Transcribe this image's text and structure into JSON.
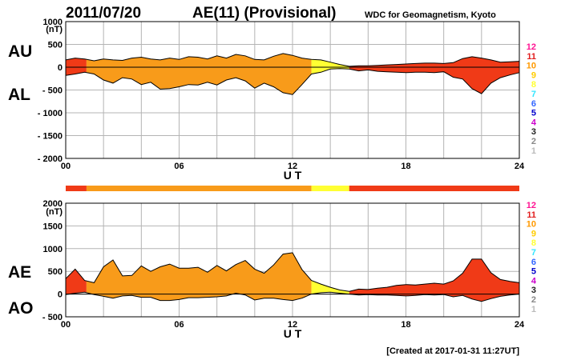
{
  "header": {
    "date": "2011/07/20",
    "title": "AE(11) (Provisional)",
    "source": "WDC for Geomagnetism, Kyoto"
  },
  "footer": {
    "created": "[Created at 2017-01-31 11:27UT]"
  },
  "activity_scale": [
    {
      "label": "12",
      "color": "#ff1493"
    },
    {
      "label": "11",
      "color": "#e11e1e"
    },
    {
      "label": "10",
      "color": "#ff9900"
    },
    {
      "label": "9",
      "color": "#ffcc00"
    },
    {
      "label": "8",
      "color": "#ffff33"
    },
    {
      "label": "7",
      "color": "#33e6ff"
    },
    {
      "label": "6",
      "color": "#3366ff"
    },
    {
      "label": "5",
      "color": "#0000cc"
    },
    {
      "label": "4",
      "color": "#cc00cc"
    },
    {
      "label": "3",
      "color": "#222222"
    },
    {
      "label": "2",
      "color": "#888888"
    },
    {
      "label": "1",
      "color": "#bbbbbb"
    }
  ],
  "activity_bar": [
    {
      "from": 0,
      "to": 1.1,
      "color": "#f03a17"
    },
    {
      "from": 1.1,
      "to": 13.0,
      "color": "#f89b1a"
    },
    {
      "from": 13.0,
      "to": 15.0,
      "color": "#ffff33"
    },
    {
      "from": 15.0,
      "to": 24,
      "color": "#f03a17"
    }
  ],
  "chart_data": [
    {
      "type": "area",
      "panel": "AU/AL",
      "left_labels": [
        "AU",
        "AL"
      ],
      "unit": "(nT)",
      "xlabel": "U T",
      "xlim": [
        0,
        24
      ],
      "xticks": [
        "00",
        "06",
        "12",
        "18",
        "24"
      ],
      "ylim": [
        -2000,
        1000
      ],
      "yticks": [
        1000,
        500,
        0,
        -500,
        -1000,
        -1500,
        -2000
      ],
      "hours": [
        0,
        0.5,
        1,
        1.5,
        2,
        2.5,
        3,
        3.5,
        4,
        4.5,
        5,
        5.5,
        6,
        6.5,
        7,
        7.5,
        8,
        8.5,
        9,
        9.5,
        10,
        10.5,
        11,
        11.5,
        12,
        12.5,
        13,
        13.5,
        14,
        14.5,
        15,
        15.5,
        16,
        16.5,
        17,
        17.5,
        18,
        18.5,
        19,
        19.5,
        20,
        20.5,
        21,
        21.5,
        22,
        22.5,
        23,
        23.5,
        24
      ],
      "series": [
        {
          "values": [
            160,
            200,
            180,
            140,
            180,
            160,
            150,
            200,
            220,
            180,
            160,
            200,
            170,
            230,
            220,
            180,
            250,
            200,
            280,
            250,
            170,
            160,
            240,
            300,
            260,
            200,
            170,
            160,
            110,
            60,
            20,
            30,
            30,
            40,
            50,
            60,
            70,
            80,
            90,
            90,
            80,
            100,
            190,
            230,
            200,
            160,
            110,
            120,
            130
          ]
        },
        {
          "values": [
            -180,
            -150,
            -110,
            -150,
            -280,
            -350,
            -230,
            -260,
            -380,
            -330,
            -480,
            -470,
            -430,
            -380,
            -390,
            -330,
            -390,
            -280,
            -230,
            -300,
            -460,
            -350,
            -430,
            -560,
            -600,
            -380,
            -150,
            -110,
            -40,
            -30,
            -40,
            -80,
            -60,
            -90,
            -100,
            -110,
            -120,
            -110,
            -110,
            -120,
            -100,
            -220,
            -260,
            -470,
            -580,
            -350,
            -230,
            -170,
            -120
          ]
        }
      ],
      "segments": [
        {
          "from": 0,
          "to": 1.1,
          "color": "#f03a17"
        },
        {
          "from": 1.1,
          "to": 13.0,
          "color": "#f89b1a"
        },
        {
          "from": 13.0,
          "to": 15.0,
          "color": "#ffff33"
        },
        {
          "from": 15.0,
          "to": 24,
          "color": "#f03a17"
        }
      ]
    },
    {
      "type": "area",
      "panel": "AE/AO",
      "left_labels": [
        "AE",
        "AO"
      ],
      "unit": "(nT)",
      "xlabel": "U T",
      "xlim": [
        0,
        24
      ],
      "xticks": [
        "00",
        "06",
        "12",
        "18",
        "24"
      ],
      "ylim": [
        -500,
        2000
      ],
      "yticks": [
        2000,
        1500,
        1000,
        500,
        0,
        -500
      ],
      "hours": [
        0,
        0.5,
        1,
        1.5,
        2,
        2.5,
        3,
        3.5,
        4,
        4.5,
        5,
        5.5,
        6,
        6.5,
        7,
        7.5,
        8,
        8.5,
        9,
        9.5,
        10,
        10.5,
        11,
        11.5,
        12,
        12.5,
        13,
        13.5,
        14,
        14.5,
        15,
        15.5,
        16,
        16.5,
        17,
        17.5,
        18,
        18.5,
        19,
        19.5,
        20,
        20.5,
        21,
        21.5,
        22,
        22.5,
        23,
        23.5,
        24
      ],
      "series": [
        {
          "values": [
            340,
            550,
            300,
            250,
            600,
            750,
            400,
            410,
            620,
            500,
            600,
            660,
            570,
            570,
            590,
            480,
            630,
            510,
            650,
            740,
            550,
            460,
            640,
            880,
            910,
            540,
            300,
            220,
            150,
            90,
            60,
            110,
            100,
            130,
            150,
            190,
            210,
            200,
            220,
            240,
            220,
            290,
            460,
            770,
            770,
            470,
            320,
            280,
            250
          ]
        },
        {
          "values": [
            -10,
            20,
            40,
            -10,
            -50,
            -90,
            -40,
            -30,
            -70,
            -70,
            -140,
            -140,
            -120,
            -80,
            -80,
            -70,
            -60,
            -40,
            20,
            -20,
            -130,
            -90,
            -90,
            -120,
            -140,
            -90,
            0,
            30,
            40,
            20,
            0,
            -20,
            -10,
            -20,
            -20,
            -30,
            -40,
            -30,
            -10,
            -20,
            -10,
            -60,
            -30,
            -110,
            -160,
            -100,
            -50,
            -20,
            0
          ]
        }
      ],
      "segments": [
        {
          "from": 0,
          "to": 1.1,
          "color": "#f03a17"
        },
        {
          "from": 1.1,
          "to": 13.0,
          "color": "#f89b1a"
        },
        {
          "from": 13.0,
          "to": 15.0,
          "color": "#ffff33"
        },
        {
          "from": 15.0,
          "to": 24,
          "color": "#f03a17"
        }
      ]
    }
  ]
}
